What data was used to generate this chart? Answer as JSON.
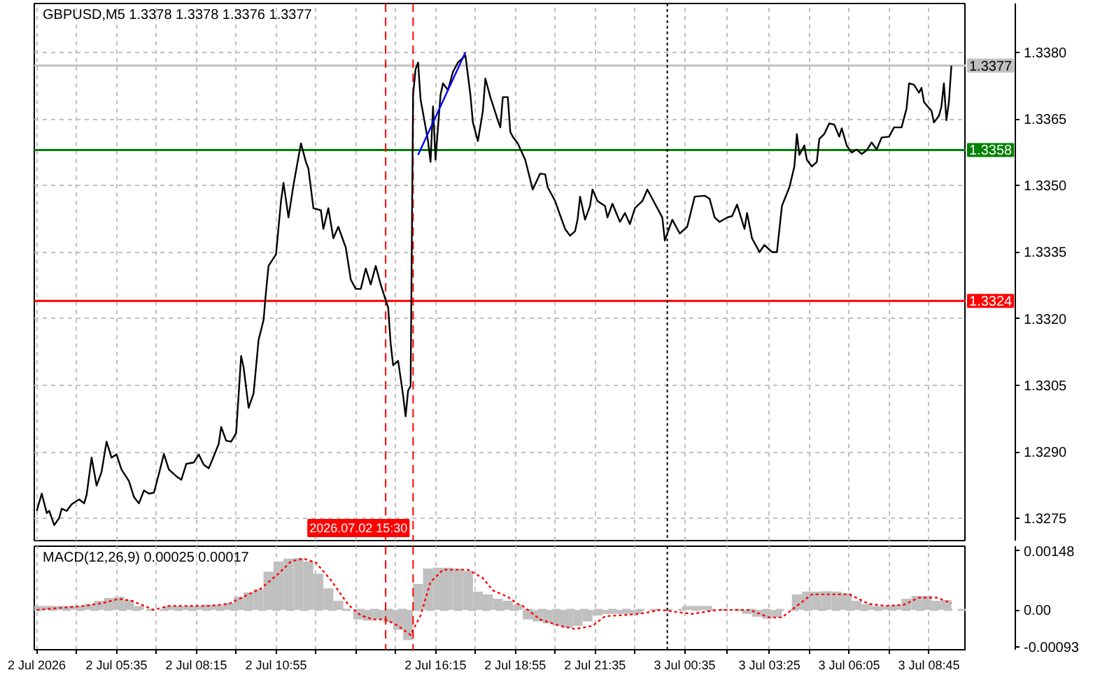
{
  "chart_data": [
    {
      "type": "line",
      "title": "GBPUSD,M5 1.3378 1.3378 1.3376 1.3377",
      "xlim": [
        "2026-07-02T02:50",
        "2026-07-03T10:00"
      ],
      "xticks": [
        {
          "value": "2026-07-02T02:55",
          "label": null
        },
        {
          "value": "2026-07-02T04:15",
          "label": null
        },
        {
          "value": "2026-07-02T05:35",
          "label": null
        },
        {
          "value": "2026-07-02T06:55",
          "label": null
        },
        {
          "value": "2026-07-02T08:15",
          "label": null
        },
        {
          "value": "2026-07-02T09:35",
          "label": null
        },
        {
          "value": "2026-07-02T10:55",
          "label": null
        },
        {
          "value": "2026-07-02T12:15",
          "label": null
        },
        {
          "value": "2026-07-02T13:35",
          "label": null
        },
        {
          "value": "2026-07-02T14:55",
          "label": null
        },
        {
          "value": "2026-07-02T16:15",
          "label": null
        },
        {
          "value": "2026-07-02T17:35",
          "label": null
        },
        {
          "value": "2026-07-02T18:55",
          "label": null
        },
        {
          "value": "2026-07-02T20:15",
          "label": null
        },
        {
          "value": "2026-07-02T21:35",
          "label": null
        },
        {
          "value": "2026-07-02T22:55",
          "label": null
        },
        {
          "value": "2026-07-03T00:35",
          "label": null
        },
        {
          "value": "2026-07-03T02:00",
          "label": null
        },
        {
          "value": "2026-07-03T03:25",
          "label": null
        },
        {
          "value": "2026-07-03T04:45",
          "label": null
        },
        {
          "value": "2026-07-03T06:05",
          "label": null
        },
        {
          "value": "2026-07-03T07:25",
          "label": null
        },
        {
          "value": "2026-07-03T08:45",
          "label": null
        }
      ],
      "ylim": [
        1.327,
        1.3391
      ],
      "yticks": [
        {
          "value": 1.3275,
          "label": "1.3275"
        },
        {
          "value": 1.329,
          "label": "1.3290"
        },
        {
          "value": 1.3305,
          "label": "1.3305"
        },
        {
          "value": 1.332,
          "label": "1.3320"
        },
        {
          "value": 1.3335,
          "label": "1.3335"
        },
        {
          "value": 1.335,
          "label": "1.3350"
        },
        {
          "value": 1.3365,
          "label": "1.3365"
        },
        {
          "value": 1.338,
          "label": "1.3380"
        }
      ],
      "tick_labels": "y",
      "grid": true,
      "series": [
        {
          "color": "#000000",
          "x": [
            "2026-07-02T02:55",
            "2026-07-02T03:05",
            "2026-07-02T03:15",
            "2026-07-02T03:20",
            "2026-07-02T03:30",
            "2026-07-02T03:40",
            "2026-07-02T03:45",
            "2026-07-02T03:55",
            "2026-07-02T04:05",
            "2026-07-02T04:20",
            "2026-07-02T04:30",
            "2026-07-02T04:35",
            "2026-07-02T04:45",
            "2026-07-02T04:55",
            "2026-07-02T05:05",
            "2026-07-02T05:15",
            "2026-07-02T05:25",
            "2026-07-02T05:35",
            "2026-07-02T05:45",
            "2026-07-02T06:00",
            "2026-07-02T06:10",
            "2026-07-02T06:20",
            "2026-07-02T06:30",
            "2026-07-02T06:40",
            "2026-07-02T06:50",
            "2026-07-02T07:00",
            "2026-07-02T07:10",
            "2026-07-02T07:20",
            "2026-07-02T07:35",
            "2026-07-02T07:45",
            "2026-07-02T07:55",
            "2026-07-02T08:10",
            "2026-07-02T08:20",
            "2026-07-02T08:30",
            "2026-07-02T08:40",
            "2026-07-02T08:45",
            "2026-07-02T09:00",
            "2026-07-02T09:05",
            "2026-07-02T09:15",
            "2026-07-02T09:25",
            "2026-07-02T09:35",
            "2026-07-02T09:45",
            "2026-07-02T09:50",
            "2026-07-02T10:00",
            "2026-07-02T10:10",
            "2026-07-02T10:20",
            "2026-07-02T10:30",
            "2026-07-02T10:35",
            "2026-07-02T10:40",
            "2026-07-02T10:55",
            "2026-07-02T11:05",
            "2026-07-02T11:10",
            "2026-07-02T11:20",
            "2026-07-02T11:30",
            "2026-07-02T11:45",
            "2026-07-02T11:55",
            "2026-07-02T12:00",
            "2026-07-02T12:10",
            "2026-07-02T12:25",
            "2026-07-02T12:30",
            "2026-07-02T12:40",
            "2026-07-02T12:50",
            "2026-07-02T13:00",
            "2026-07-02T13:15",
            "2026-07-02T13:25",
            "2026-07-02T13:35",
            "2026-07-02T13:45",
            "2026-07-02T13:55",
            "2026-07-02T14:05",
            "2026-07-02T14:15",
            "2026-07-02T14:25",
            "2026-07-02T14:40",
            "2026-07-02T14:45",
            "2026-07-02T14:50",
            "2026-07-02T15:00",
            "2026-07-02T15:10",
            "2026-07-02T15:15",
            "2026-07-02T15:20",
            "2026-07-02T15:25",
            "2026-07-02T15:30",
            "2026-07-02T15:35",
            "2026-07-02T15:40",
            "2026-07-02T15:45",
            "2026-07-02T15:50",
            "2026-07-02T16:00",
            "2026-07-02T16:05",
            "2026-07-02T16:10",
            "2026-07-02T16:15",
            "2026-07-02T16:25",
            "2026-07-02T16:30",
            "2026-07-02T16:40",
            "2026-07-02T16:50",
            "2026-07-02T17:00",
            "2026-07-02T17:15",
            "2026-07-02T17:25",
            "2026-07-02T17:30",
            "2026-07-02T17:40",
            "2026-07-02T17:50",
            "2026-07-02T17:55",
            "2026-07-02T18:05",
            "2026-07-02T18:20",
            "2026-07-02T18:25",
            "2026-07-02T18:30",
            "2026-07-02T18:40",
            "2026-07-02T18:45",
            "2026-07-02T18:50",
            "2026-07-02T19:00",
            "2026-07-02T19:15",
            "2026-07-02T19:30",
            "2026-07-02T19:45",
            "2026-07-02T19:55",
            "2026-07-02T20:00",
            "2026-07-02T20:15",
            "2026-07-02T20:25",
            "2026-07-02T20:35",
            "2026-07-02T20:45",
            "2026-07-02T20:55",
            "2026-07-02T21:00",
            "2026-07-02T21:05",
            "2026-07-02T21:15",
            "2026-07-02T21:25",
            "2026-07-02T21:30",
            "2026-07-02T21:40",
            "2026-07-02T21:55",
            "2026-07-02T22:00",
            "2026-07-02T22:10",
            "2026-07-02T22:25",
            "2026-07-02T22:35",
            "2026-07-02T22:45",
            "2026-07-02T22:55",
            "2026-07-02T23:10",
            "2026-07-02T23:20",
            "2026-07-02T23:30",
            "2026-07-02T23:40",
            "2026-07-02T23:50",
            "2026-07-02T23:55",
            "2026-07-03T00:10",
            "2026-07-03T00:25",
            "2026-07-03T00:40",
            "2026-07-03T00:55",
            "2026-07-03T01:15",
            "2026-07-03T01:25",
            "2026-07-03T01:35",
            "2026-07-03T01:45",
            "2026-07-03T02:00",
            "2026-07-03T02:10",
            "2026-07-03T02:20",
            "2026-07-03T02:35",
            "2026-07-03T02:40",
            "2026-07-03T02:50",
            "2026-07-03T03:05",
            "2026-07-03T03:15",
            "2026-07-03T03:30",
            "2026-07-03T03:40",
            "2026-07-03T03:50",
            "2026-07-03T04:05",
            "2026-07-03T04:15",
            "2026-07-03T04:20",
            "2026-07-03T04:25",
            "2026-07-03T04:35",
            "2026-07-03T04:40",
            "2026-07-03T04:50",
            "2026-07-03T05:00",
            "2026-07-03T05:05",
            "2026-07-03T05:15",
            "2026-07-03T05:25",
            "2026-07-03T05:35",
            "2026-07-03T05:45",
            "2026-07-03T05:50",
            "2026-07-03T06:00",
            "2026-07-03T06:10",
            "2026-07-03T06:20",
            "2026-07-03T06:30",
            "2026-07-03T06:40",
            "2026-07-03T06:50",
            "2026-07-03T07:00",
            "2026-07-03T07:10",
            "2026-07-03T07:25",
            "2026-07-03T07:35",
            "2026-07-03T07:50",
            "2026-07-03T08:00",
            "2026-07-03T08:05",
            "2026-07-03T08:15",
            "2026-07-03T08:25",
            "2026-07-03T08:30",
            "2026-07-03T08:35",
            "2026-07-03T08:50",
            "2026-07-03T08:55",
            "2026-07-03T09:05",
            "2026-07-03T09:10",
            "2026-07-03T09:15",
            "2026-07-03T09:20",
            "2026-07-03T09:25",
            "2026-07-03T09:30"
          ],
          "values": [
            1.32767,
            1.32806,
            1.32762,
            1.32767,
            1.32735,
            1.32751,
            1.32772,
            1.32767,
            1.32782,
            1.32793,
            1.32784,
            1.32803,
            1.32887,
            1.32824,
            1.32855,
            1.32923,
            1.32887,
            1.32894,
            1.3286,
            1.32834,
            1.32798,
            1.32784,
            1.32813,
            1.32806,
            1.32808,
            1.3285,
            1.32895,
            1.3286,
            1.32845,
            1.32837,
            1.32873,
            1.32876,
            1.32894,
            1.32871,
            1.32863,
            1.32876,
            1.32918,
            1.32956,
            1.32925,
            1.32923,
            1.32942,
            1.33116,
            1.3309,
            1.32999,
            1.33032,
            1.33152,
            1.33197,
            1.33262,
            1.33319,
            1.33345,
            1.33465,
            1.33506,
            1.33428,
            1.33501,
            1.33595,
            1.33553,
            1.33538,
            1.33449,
            1.33444,
            1.33402,
            1.33449,
            1.33381,
            1.33407,
            1.3336,
            1.33288,
            1.33267,
            1.33267,
            1.33313,
            1.33277,
            1.33319,
            1.33277,
            1.33225,
            1.33144,
            1.33095,
            1.33105,
            1.33027,
            1.3298,
            1.33038,
            1.33048,
            1.33704,
            1.33762,
            1.33777,
            1.33694,
            1.33663,
            1.336,
            1.33553,
            1.33678,
            1.33558,
            1.33704,
            1.3373,
            1.33715,
            1.33756,
            1.33777,
            1.33793,
            1.33704,
            1.33642,
            1.336,
            1.33668,
            1.33741,
            1.33699,
            1.33647,
            1.33631,
            1.33699,
            1.33699,
            1.33621,
            1.3361,
            1.33595,
            1.33558,
            1.33491,
            1.33527,
            1.33525,
            1.33496,
            1.33465,
            1.33433,
            1.33402,
            1.33387,
            1.33397,
            1.33423,
            1.33475,
            1.33423,
            1.33454,
            1.33491,
            1.33465,
            1.33454,
            1.33428,
            1.33459,
            1.33418,
            1.33438,
            1.33413,
            1.33449,
            1.33465,
            1.33491,
            1.3347,
            1.33449,
            1.33428,
            1.33376,
            1.33423,
            1.33392,
            1.33407,
            1.33475,
            1.33477,
            1.3347,
            1.33428,
            1.33418,
            1.33428,
            1.33431,
            1.33457,
            1.33402,
            1.33438,
            1.33381,
            1.3335,
            1.33366,
            1.3335,
            1.3335,
            1.33454,
            1.33496,
            1.33543,
            1.33616,
            1.33569,
            1.3359,
            1.33558,
            1.33543,
            1.33553,
            1.33605,
            1.33616,
            1.3364,
            1.33637,
            1.3361,
            1.33629,
            1.3359,
            1.33574,
            1.33581,
            1.33571,
            1.33579,
            1.33597,
            1.33581,
            1.33608,
            1.3361,
            1.33631,
            1.33631,
            1.33673,
            1.3373,
            1.33727,
            1.33709,
            1.3372,
            1.33688,
            1.33668,
            1.33642,
            1.33657,
            1.33678,
            1.3373,
            1.33647,
            1.33688,
            1.3377
          ]
        },
        {
          "type": "line",
          "color": "#0000ff",
          "x": [
            "2026-07-02T15:40",
            "2026-07-02T17:15"
          ],
          "values": [
            1.33569,
            1.338
          ]
        }
      ],
      "ref_lines": [
        {
          "axis": "y",
          "value": 1.3377,
          "label": "1.3377",
          "color": "#c0c0c0"
        },
        {
          "axis": "y",
          "value": 1.3358,
          "label": "1.3358",
          "color": "#008000"
        },
        {
          "axis": "y",
          "value": 1.3324,
          "label": "1.3324",
          "color": "#ff0000"
        },
        {
          "axis": "x",
          "value": "2026-07-02T14:35",
          "color": "#ff0000",
          "line_style": "dashed"
        },
        {
          "axis": "x",
          "value": "2026-07-02T15:30",
          "label": "2026.07.02 15:30",
          "color": "#ff0000",
          "line_style": "dashed"
        },
        {
          "axis": "x",
          "value": "2026-07-03T00:00",
          "color": "#000000",
          "line_style": "dotted"
        }
      ]
    },
    {
      "type": "bar",
      "title": "MACD(12,26,9) 0.00025 0.00017",
      "xlim": [
        "2026-07-02T02:50",
        "2026-07-03T10:00"
      ],
      "xticks": [
        {
          "value": "2026-07-02T02:55",
          "label": "2 Jul 2026"
        },
        {
          "value": "2026-07-02T04:15",
          "label": null
        },
        {
          "value": "2026-07-02T05:35",
          "label": "2 Jul 05:35"
        },
        {
          "value": "2026-07-02T06:55",
          "label": null
        },
        {
          "value": "2026-07-02T08:15",
          "label": "2 Jul 08:15"
        },
        {
          "value": "2026-07-02T09:35",
          "label": null
        },
        {
          "value": "2026-07-02T10:55",
          "label": "2 Jul 10:55"
        },
        {
          "value": "2026-07-02T12:15",
          "label": null
        },
        {
          "value": "2026-07-02T13:35",
          "label": null
        },
        {
          "value": "2026-07-02T14:55",
          "label": null
        },
        {
          "value": "2026-07-02T16:15",
          "label": "2 Jul 16:15"
        },
        {
          "value": "2026-07-02T17:35",
          "label": null
        },
        {
          "value": "2026-07-02T18:55",
          "label": "2 Jul 18:55"
        },
        {
          "value": "2026-07-02T20:15",
          "label": null
        },
        {
          "value": "2026-07-02T21:35",
          "label": "2 Jul 21:35"
        },
        {
          "value": "2026-07-02T22:55",
          "label": null
        },
        {
          "value": "2026-07-03T00:35",
          "label": "3 Jul 00:35"
        },
        {
          "value": "2026-07-03T02:00",
          "label": null
        },
        {
          "value": "2026-07-03T03:25",
          "label": "3 Jul 03:25"
        },
        {
          "value": "2026-07-03T04:45",
          "label": null
        },
        {
          "value": "2026-07-03T06:05",
          "label": "3 Jul 06:05"
        },
        {
          "value": "2026-07-03T07:25",
          "label": null
        },
        {
          "value": "2026-07-03T08:45",
          "label": "3 Jul 08:45"
        }
      ],
      "ylim": [
        -0.001,
        0.0016
      ],
      "yticks": [
        0.00148,
        {
          "value": 0,
          "label": "0.00"
        },
        -0.00093
      ],
      "grid": "x",
      "series": [
        {
          "type": "bar",
          "color": "#c0c0c0",
          "x": [
            "2026-07-02T03:00",
            "2026-07-02T03:20",
            "2026-07-02T03:40",
            "2026-07-02T04:00",
            "2026-07-02T04:20",
            "2026-07-02T04:40",
            "2026-07-02T05:00",
            "2026-07-02T05:20",
            "2026-07-02T05:40",
            "2026-07-02T06:00",
            "2026-07-02T06:20",
            "2026-07-02T06:40",
            "2026-07-02T07:00",
            "2026-07-02T07:20",
            "2026-07-02T07:40",
            "2026-07-02T08:00",
            "2026-07-02T08:20",
            "2026-07-02T08:40",
            "2026-07-02T09:00",
            "2026-07-02T09:20",
            "2026-07-02T09:40",
            "2026-07-02T10:00",
            "2026-07-02T10:20",
            "2026-07-02T10:40",
            "2026-07-02T11:00",
            "2026-07-02T11:20",
            "2026-07-02T11:40",
            "2026-07-02T12:00",
            "2026-07-02T12:20",
            "2026-07-02T12:40",
            "2026-07-02T13:00",
            "2026-07-02T13:20",
            "2026-07-02T13:40",
            "2026-07-02T14:00",
            "2026-07-02T14:20",
            "2026-07-02T14:40",
            "2026-07-02T15:00",
            "2026-07-02T15:20",
            "2026-07-02T15:40",
            "2026-07-02T16:00",
            "2026-07-02T16:20",
            "2026-07-02T16:40",
            "2026-07-02T17:00",
            "2026-07-02T17:20",
            "2026-07-02T17:40",
            "2026-07-02T18:00",
            "2026-07-02T18:20",
            "2026-07-02T18:40",
            "2026-07-02T19:00",
            "2026-07-02T19:20",
            "2026-07-02T19:40",
            "2026-07-02T20:00",
            "2026-07-02T20:20",
            "2026-07-02T20:40",
            "2026-07-02T21:00",
            "2026-07-02T21:20",
            "2026-07-02T21:40",
            "2026-07-02T22:00",
            "2026-07-02T22:20",
            "2026-07-02T22:40",
            "2026-07-02T23:00",
            "2026-07-02T23:20",
            "2026-07-02T23:40",
            "2026-07-03T00:00",
            "2026-07-03T00:20",
            "2026-07-03T00:40",
            "2026-07-03T01:00",
            "2026-07-03T01:20",
            "2026-07-03T01:40",
            "2026-07-03T02:00",
            "2026-07-03T02:20",
            "2026-07-03T02:40",
            "2026-07-03T03:00",
            "2026-07-03T03:20",
            "2026-07-03T03:40",
            "2026-07-03T04:00",
            "2026-07-03T04:20",
            "2026-07-03T04:40",
            "2026-07-03T05:00",
            "2026-07-03T05:20",
            "2026-07-03T05:40",
            "2026-07-03T06:00",
            "2026-07-03T06:20",
            "2026-07-03T06:40",
            "2026-07-03T07:00",
            "2026-07-03T07:20",
            "2026-07-03T07:40",
            "2026-07-03T08:00",
            "2026-07-03T08:20",
            "2026-07-03T08:40",
            "2026-07-03T09:00",
            "2026-07-03T09:20"
          ],
          "values": [
            0.0001,
            0.0001,
            0.0001,
            0.0001,
            0.0001,
            0.00015,
            0.00023,
            0.0003,
            0.00033,
            0.00025,
            0.0001,
            0,
            0,
            0.0001,
            0.0001,
            0.0001,
            0.0001,
            0.00013,
            0.00013,
            0.00018,
            0.00033,
            0.00044,
            0.00052,
            0.00096,
            0.00122,
            0.00129,
            0.0013,
            0.00122,
            0.00091,
            0.00054,
            0.00023,
            0,
            -0.00024,
            -0.00027,
            -0.00024,
            -0.00031,
            -0.0005,
            -0.00076,
            0.00065,
            0.00104,
            0.00106,
            0.00106,
            0.00104,
            0.00098,
            0.00046,
            0.00039,
            0.00028,
            0.00023,
            0.00013,
            -0.00024,
            -0.00029,
            -0.00034,
            -0.0004,
            -0.00045,
            -0.0004,
            -0.00029,
            -0.00014,
            -0.0001,
            -0.0001,
            -0.0001,
            -0.0001,
            0,
            0,
            0,
            0,
            0.0001,
            0.0001,
            0.0001,
            0,
            0,
            0,
            -0.0001,
            -0.00017,
            -0.00022,
            -0.00019,
            0,
            0.00039,
            0.00046,
            0.00046,
            0.00047,
            0.00046,
            0.00042,
            0.00023,
            0.00015,
            0.0001,
            0.0001,
            0.00013,
            0.00028,
            0.00035,
            0.00035,
            0.00023,
            0.00025
          ]
        },
        {
          "type": "line",
          "color": "#ff0000",
          "line_style": "dotted",
          "x": [
            "2026-07-02T02:55",
            "2026-07-02T04:30",
            "2026-07-02T05:10",
            "2026-07-02T05:40",
            "2026-07-02T06:05",
            "2026-07-02T06:50",
            "2026-07-02T07:20",
            "2026-07-02T08:40",
            "2026-07-02T09:20",
            "2026-07-02T09:50",
            "2026-07-02T10:25",
            "2026-07-02T11:00",
            "2026-07-02T11:25",
            "2026-07-02T11:50",
            "2026-07-02T12:15",
            "2026-07-02T12:45",
            "2026-07-02T13:20",
            "2026-07-02T13:45",
            "2026-07-02T14:10",
            "2026-07-02T14:35",
            "2026-07-02T15:00",
            "2026-07-02T15:25",
            "2026-07-02T15:45",
            "2026-07-02T16:05",
            "2026-07-02T16:30",
            "2026-07-02T17:20",
            "2026-07-02T17:50",
            "2026-07-02T18:10",
            "2026-07-02T18:40",
            "2026-07-02T19:00",
            "2026-07-02T19:10",
            "2026-07-02T19:45",
            "2026-07-02T20:25",
            "2026-07-02T20:55",
            "2026-07-02T21:30",
            "2026-07-02T21:55",
            "2026-07-02T23:05",
            "2026-07-02T23:45",
            "2026-07-03T00:50",
            "2026-07-03T01:40",
            "2026-07-03T02:45",
            "2026-07-03T03:25",
            "2026-07-03T03:50",
            "2026-07-03T04:25",
            "2026-07-03T04:50",
            "2026-07-03T06:05",
            "2026-07-03T06:45",
            "2026-07-03T07:20",
            "2026-07-03T07:55",
            "2026-07-03T08:25",
            "2026-07-03T09:00",
            "2026-07-03T09:30"
          ],
          "values": [
            0,
            0.0001,
            0.00018,
            0.00028,
            0.00023,
            0,
            0.0001,
            0.0001,
            0.00015,
            0.00033,
            0.00054,
            0.00091,
            0.00122,
            0.00129,
            0.00119,
            0.00075,
            0.00013,
            -0.00014,
            -0.00024,
            -0.00024,
            -0.0004,
            -0.00063,
            -0.00014,
            0.0007,
            0.00101,
            0.00101,
            0.0008,
            0.00049,
            0.00033,
            0.00015,
            0.0001,
            -0.00024,
            -0.0004,
            -0.00048,
            -0.0004,
            -0.00016,
            -0.0001,
            0,
            -0.0001,
            0,
            0,
            -0.00019,
            -0.00019,
            0.00015,
            0.00039,
            0.00039,
            0.00015,
            0.0001,
            0.00013,
            0.00031,
            0.00031,
            0.00017
          ]
        }
      ],
      "ref_lines": [
        {
          "axis": "y",
          "value": 0,
          "color": "#c0c0c0",
          "line_style": "dashed"
        },
        {
          "axis": "x",
          "value": "2026-07-02T14:35",
          "color": "#ff0000",
          "line_style": "dashed"
        },
        {
          "axis": "x",
          "value": "2026-07-02T15:30",
          "color": "#ff0000",
          "line_style": "dashed"
        },
        {
          "axis": "x",
          "value": "2026-07-03T00:00",
          "color": "#000000",
          "line_style": "dotted"
        }
      ]
    }
  ]
}
